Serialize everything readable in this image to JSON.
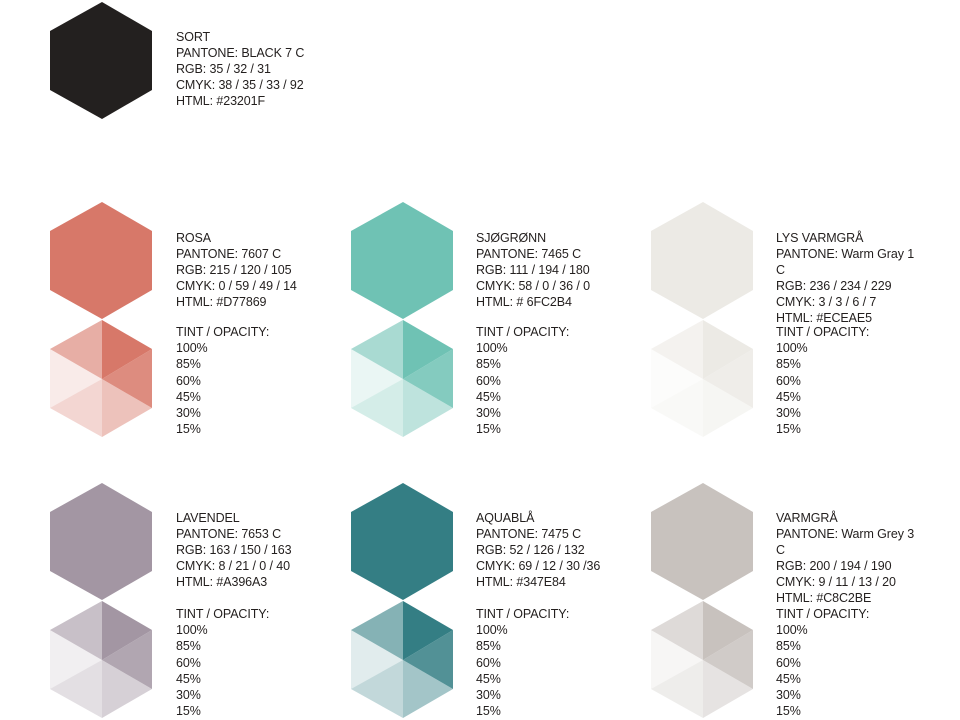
{
  "tint_label": "TINT / OPACITY:",
  "tint_levels": [
    "100%",
    "85%",
    "60%",
    "45%",
    "30%",
    "15%"
  ],
  "tint_alphas": [
    1,
    0.85,
    0.6,
    0.45,
    0.3,
    0.15
  ],
  "swatches": [
    {
      "name": "SORT",
      "pantone": "PANTONE: BLACK 7 C",
      "rgb": "RGB: 35 / 32 / 31",
      "cmyk": "CMYK: 38 / 35 / 33 / 92",
      "html": "HTML: #23201F",
      "color": "#23201F",
      "has_tints": false
    },
    {
      "name": "ROSA",
      "pantone": "PANTONE: 7607 C",
      "rgb": "RGB: 215 / 120 / 105",
      "cmyk": "CMYK: 0 / 59 / 49 / 14",
      "html": "HTML: #D77869",
      "color": "#D77869",
      "has_tints": true
    },
    {
      "name": "SJØGRØNN",
      "pantone": "PANTONE: 7465 C",
      "rgb": "RGB: 111 / 194 / 180",
      "cmyk": "CMYK: 58 / 0 / 36 / 0",
      "html": "HTML: # 6FC2B4",
      "color": "#6FC2B4",
      "has_tints": true
    },
    {
      "name": "LYS VARMGRÅ",
      "pantone": "PANTONE: Warm Gray 1 C",
      "rgb": "RGB: 236 / 234 / 229",
      "cmyk": "CMYK: 3 / 3 / 6 / 7",
      "html": "HTML: #ECEAE5",
      "color": "#ECEAE5",
      "has_tints": true
    },
    {
      "name": "LAVENDEL",
      "pantone": "PANTONE: 7653 C",
      "rgb": "RGB: 163 / 150 / 163",
      "cmyk": "CMYK: 8 / 21 / 0 / 40",
      "html": "HTML: #A396A3",
      "color": "#A396A3",
      "has_tints": true
    },
    {
      "name": "AQUABLÅ",
      "pantone": "PANTONE: 7475 C",
      "rgb": "RGB: 52 / 126 / 132",
      "cmyk": "CMYK: 69 / 12 / 30 /36",
      "html": "HTML: #347E84",
      "color": "#347E84",
      "has_tints": true
    },
    {
      "name": "VARMGRÅ",
      "pantone": "PANTONE: Warm Grey 3 C",
      "rgb": "RGB: 200 / 194 / 190",
      "cmyk": "CMYK: 9 / 11 / 13 / 20",
      "html": "HTML: #C8C2BE",
      "color": "#C8C2BE",
      "has_tints": true
    }
  ]
}
